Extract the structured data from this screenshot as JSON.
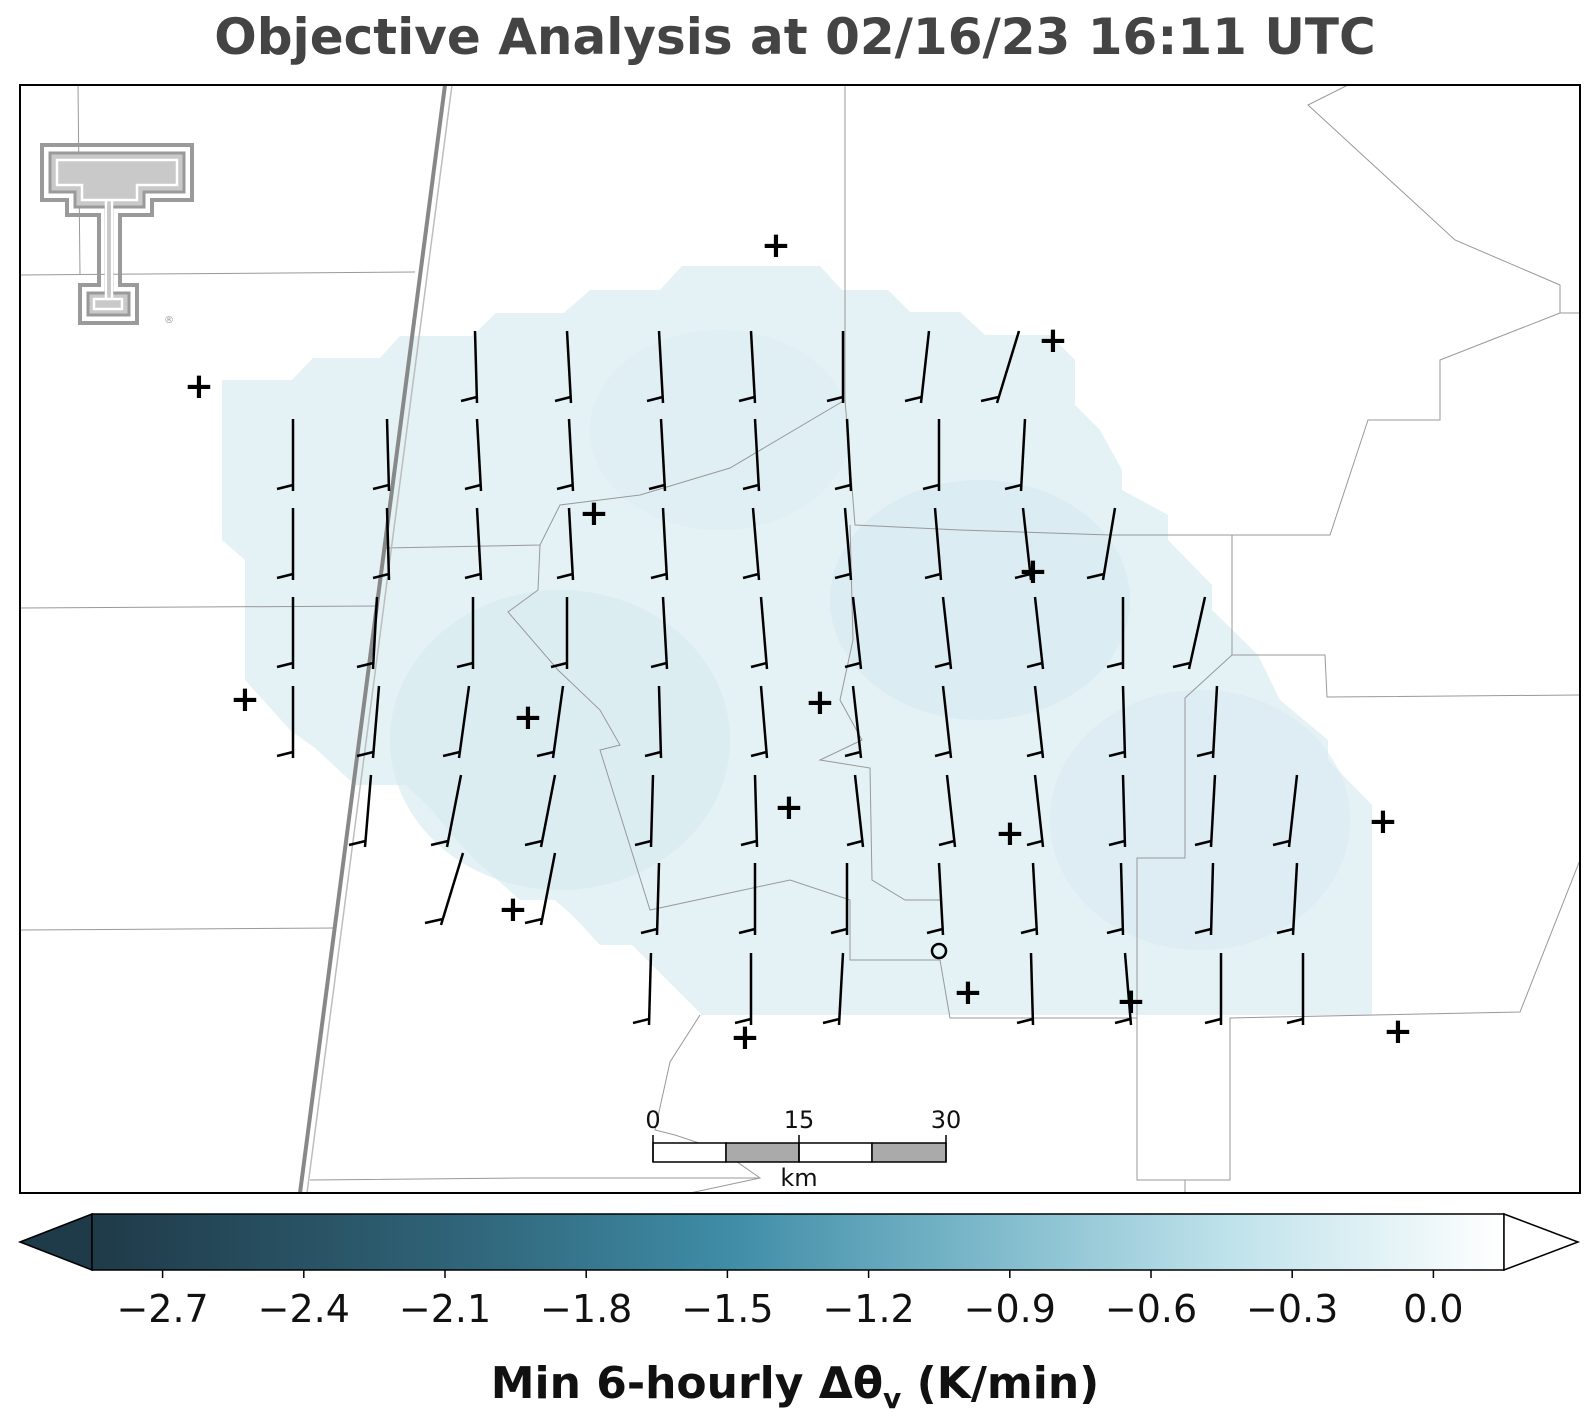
{
  "title": "Objective Analysis at 02/16/23 16:11 UTC",
  "colorbar": {
    "label_main": "Min 6-hourly Δθ",
    "label_sub": "v",
    "label_units": " (K/min)",
    "ticks": [
      "−2.7",
      "−2.4",
      "−2.1",
      "−1.8",
      "−1.5",
      "−1.2",
      "−0.9",
      "−0.6",
      "−0.3",
      "0.0"
    ],
    "tick_values": [
      -2.7,
      -2.4,
      -2.1,
      -1.8,
      -1.5,
      -1.2,
      -0.9,
      -0.6,
      -0.3,
      0.0
    ],
    "range": [
      -2.85,
      0.15
    ],
    "extend": "both",
    "colors": [
      "#1f3a48",
      "#2e5e74",
      "#3f8aa4",
      "#a8d6e2",
      "#ffffff"
    ]
  },
  "scale_bar": {
    "labels": [
      "0",
      "15",
      "30"
    ],
    "unit": "km"
  },
  "logo": {
    "name": "texas-tech-double-t-logo",
    "text": "®"
  },
  "map": {
    "field_fill": "#e3f0f5",
    "field_fill_dark": "#d6eaf1",
    "barb_color": "#000000",
    "station_marker": "+",
    "station_count": 15,
    "calm_marker": "o"
  }
}
